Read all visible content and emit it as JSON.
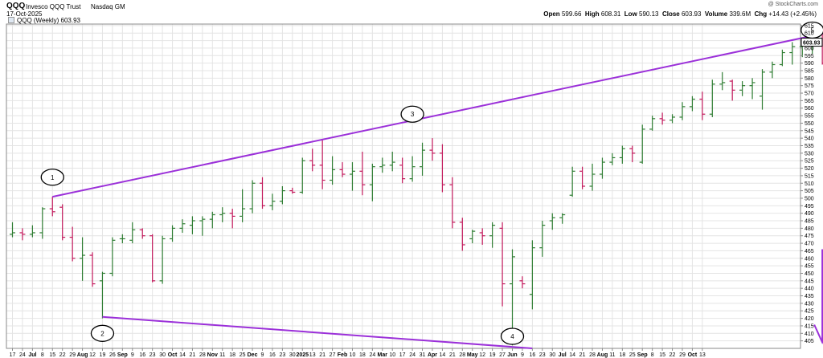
{
  "header": {
    "symbol": "QQQ",
    "name": "Invesco QQQ Trust",
    "exchange": "Nasdaq GM",
    "date": "17-Oct-2025",
    "credit": "@ StockCharts.com",
    "open_label": "Open",
    "open": "599.66",
    "high_label": "High",
    "high": "608.31",
    "low_label": "Low",
    "low": "590.13",
    "close_label": "Close",
    "close": "603.93",
    "volume_label": "Volume",
    "volume": "339.6M",
    "chg_label": "Chg",
    "chg": "+14.43 (+2.45%)"
  },
  "legend": {
    "text": "QQQ (Weekly) 603.93"
  },
  "colors": {
    "up": "#2e7d32",
    "down": "#c2185b",
    "trendline": "#9b30d9",
    "grid": "#e4e4e4",
    "last_price_box": "#000000"
  },
  "chart_data": {
    "type": "ohlc_bar",
    "frequency": "weekly",
    "y_axis": {
      "side": "right",
      "ylim": [
        400,
        616
      ],
      "ticks": [
        405,
        410,
        415,
        420,
        425,
        430,
        435,
        440,
        445,
        450,
        455,
        460,
        465,
        470,
        475,
        480,
        485,
        490,
        495,
        500,
        505,
        510,
        515,
        520,
        525,
        530,
        535,
        540,
        545,
        550,
        555,
        560,
        565,
        570,
        575,
        580,
        585,
        590,
        595,
        600,
        605,
        610,
        615
      ],
      "last_price_label": "603.93"
    },
    "x_tick_labels": [
      "17",
      "24",
      "Jul",
      "8",
      "15",
      "22",
      "29",
      "Aug",
      "12",
      "19",
      "26",
      "Sep",
      "9",
      "16",
      "23",
      "30",
      "Oct",
      "14",
      "21",
      "28",
      "Nov",
      "11",
      "18",
      "25",
      "Dec",
      "9",
      "16",
      "23",
      "30",
      "2025",
      "13",
      "21",
      "27",
      "Feb",
      "10",
      "18",
      "24",
      "Mar",
      "10",
      "17",
      "24",
      "31",
      "Apr",
      "14",
      "21",
      "28",
      "May",
      "12",
      "19",
      "27",
      "Jun",
      "9",
      "16",
      "23",
      "30",
      "Jul",
      "14",
      "21",
      "28",
      "Aug",
      "11",
      "18",
      "25",
      "Sep",
      "8",
      "15",
      "22",
      "29",
      "Oct",
      "13"
    ],
    "x_tick_bold": [
      "Jul",
      "Aug",
      "Sep",
      "Oct",
      "Nov",
      "Dec",
      "2025",
      "Feb",
      "Mar",
      "Apr",
      "May",
      "Jun"
    ],
    "bars": [
      {
        "o": 476.0,
        "h": 484.0,
        "l": 474.0,
        "c": 477.0
      },
      {
        "o": 477.0,
        "h": 480.0,
        "l": 472.0,
        "c": 476.0
      },
      {
        "o": 476.0,
        "h": 482.0,
        "l": 474.0,
        "c": 477.0
      },
      {
        "o": 477.0,
        "h": 494.0,
        "l": 473.0,
        "c": 493.0
      },
      {
        "o": 493.0,
        "h": 501.0,
        "l": 488.0,
        "c": 491.0
      },
      {
        "o": 494.0,
        "h": 496.0,
        "l": 472.0,
        "c": 474.0
      },
      {
        "o": 474.0,
        "h": 481.0,
        "l": 458.0,
        "c": 460.0
      },
      {
        "o": 460.0,
        "h": 474.0,
        "l": 445.0,
        "c": 462.0
      },
      {
        "o": 462.0,
        "h": 464.0,
        "l": 441.0,
        "c": 443.0
      },
      {
        "o": 445.0,
        "h": 451.0,
        "l": 420.0,
        "c": 450.0
      },
      {
        "o": 450.0,
        "h": 474.0,
        "l": 448.0,
        "c": 472.0
      },
      {
        "o": 473.0,
        "h": 476.0,
        "l": 470.0,
        "c": 473.0
      },
      {
        "o": 472.0,
        "h": 484.0,
        "l": 470.0,
        "c": 479.0
      },
      {
        "o": 479.0,
        "h": 480.0,
        "l": 473.0,
        "c": 475.0
      },
      {
        "o": 475.0,
        "h": 476.0,
        "l": 444.0,
        "c": 445.0
      },
      {
        "o": 445.0,
        "h": 475.0,
        "l": 443.0,
        "c": 473.0
      },
      {
        "o": 473.0,
        "h": 482.0,
        "l": 471.0,
        "c": 480.0
      },
      {
        "o": 480.0,
        "h": 486.0,
        "l": 477.0,
        "c": 483.0
      },
      {
        "o": 482.0,
        "h": 488.0,
        "l": 476.0,
        "c": 485.0
      },
      {
        "o": 485.0,
        "h": 488.0,
        "l": 475.0,
        "c": 486.0
      },
      {
        "o": 486.0,
        "h": 491.0,
        "l": 480.0,
        "c": 489.0
      },
      {
        "o": 489.0,
        "h": 494.0,
        "l": 484.0,
        "c": 490.0
      },
      {
        "o": 490.0,
        "h": 493.0,
        "l": 480.0,
        "c": 488.0
      },
      {
        "o": 488.0,
        "h": 506.0,
        "l": 484.0,
        "c": 493.0
      },
      {
        "o": 493.0,
        "h": 512.0,
        "l": 490.0,
        "c": 510.0
      },
      {
        "o": 510.0,
        "h": 514.0,
        "l": 493.0,
        "c": 495.0
      },
      {
        "o": 495.0,
        "h": 503.0,
        "l": 492.0,
        "c": 498.0
      },
      {
        "o": 498.0,
        "h": 508.0,
        "l": 496.0,
        "c": 505.0
      },
      {
        "o": 505.0,
        "h": 507.0,
        "l": 503.0,
        "c": 504.0
      },
      {
        "o": 504.0,
        "h": 527.0,
        "l": 503.0,
        "c": 525.0
      },
      {
        "o": 525.0,
        "h": 533.0,
        "l": 518.0,
        "c": 522.0
      },
      {
        "o": 522.0,
        "h": 539.0,
        "l": 506.0,
        "c": 512.0
      },
      {
        "o": 512.0,
        "h": 528.0,
        "l": 509.0,
        "c": 519.0
      },
      {
        "o": 519.0,
        "h": 524.0,
        "l": 514.0,
        "c": 516.0
      },
      {
        "o": 516.0,
        "h": 524.0,
        "l": 505.0,
        "c": 518.0
      },
      {
        "o": 518.0,
        "h": 531.0,
        "l": 502.0,
        "c": 509.0
      },
      {
        "o": 509.0,
        "h": 523.0,
        "l": 498.0,
        "c": 521.0
      },
      {
        "o": 521.0,
        "h": 527.0,
        "l": 517.0,
        "c": 522.0
      },
      {
        "o": 522.0,
        "h": 531.0,
        "l": 518.0,
        "c": 524.0
      },
      {
        "o": 522.0,
        "h": 527.0,
        "l": 510.0,
        "c": 513.0
      },
      {
        "o": 513.0,
        "h": 528.0,
        "l": 511.0,
        "c": 521.0
      },
      {
        "o": 521.0,
        "h": 537.0,
        "l": 515.0,
        "c": 532.0
      },
      {
        "o": 532.0,
        "h": 540.0,
        "l": 525.0,
        "c": 530.0
      },
      {
        "o": 530.0,
        "h": 536.0,
        "l": 504.0,
        "c": 509.0
      },
      {
        "o": 509.0,
        "h": 514.0,
        "l": 480.0,
        "c": 484.0
      },
      {
        "o": 484.0,
        "h": 487.0,
        "l": 465.0,
        "c": 469.0
      },
      {
        "o": 473.0,
        "h": 479.0,
        "l": 470.0,
        "c": 478.0
      },
      {
        "o": 477.0,
        "h": 480.0,
        "l": 469.0,
        "c": 475.0
      },
      {
        "o": 475.0,
        "h": 484.0,
        "l": 467.0,
        "c": 482.0
      },
      {
        "o": 480.0,
        "h": 484.0,
        "l": 428.0,
        "c": 443.0
      },
      {
        "o": 443.0,
        "h": 466.0,
        "l": 402.0,
        "c": 461.0
      },
      {
        "o": 445.0,
        "h": 448.0,
        "l": 440.0,
        "c": 443.0
      },
      {
        "o": 436.0,
        "h": 472.0,
        "l": 426.0,
        "c": 467.0
      },
      {
        "o": 467.0,
        "h": 485.0,
        "l": 461.0,
        "c": 482.0
      },
      {
        "o": 485.0,
        "h": 490.0,
        "l": 479.0,
        "c": 487.0
      },
      {
        "o": 487.0,
        "h": 490.0,
        "l": 483.0,
        "c": 489.0
      },
      {
        "o": 502.0,
        "h": 521.0,
        "l": 501.0,
        "c": 518.0
      },
      {
        "o": 518.0,
        "h": 521.0,
        "l": 506.0,
        "c": 508.0
      },
      {
        "o": 508.0,
        "h": 523.0,
        "l": 505.0,
        "c": 516.0
      },
      {
        "o": 516.0,
        "h": 527.0,
        "l": 513.0,
        "c": 524.0
      },
      {
        "o": 524.0,
        "h": 530.0,
        "l": 522.0,
        "c": 527.0
      },
      {
        "o": 527.0,
        "h": 535.0,
        "l": 523.0,
        "c": 533.0
      },
      {
        "o": 533.0,
        "h": 535.0,
        "l": 524.0,
        "c": 530.0
      },
      {
        "o": 524.0,
        "h": 549.0,
        "l": 523.0,
        "c": 546.0
      },
      {
        "o": 546.0,
        "h": 555.0,
        "l": 545.0,
        "c": 553.0
      },
      {
        "o": 553.0,
        "h": 557.0,
        "l": 549.0,
        "c": 552.0
      },
      {
        "o": 552.0,
        "h": 556.0,
        "l": 550.0,
        "c": 554.0
      },
      {
        "o": 554.0,
        "h": 564.0,
        "l": 552.0,
        "c": 561.0
      },
      {
        "o": 561.0,
        "h": 568.0,
        "l": 558.0,
        "c": 566.0
      },
      {
        "o": 566.0,
        "h": 571.0,
        "l": 552.0,
        "c": 556.0
      },
      {
        "o": 556.0,
        "h": 579.0,
        "l": 554.0,
        "c": 576.0
      },
      {
        "o": 576.0,
        "h": 584.0,
        "l": 572.0,
        "c": 577.0
      },
      {
        "o": 578.0,
        "h": 579.0,
        "l": 565.0,
        "c": 572.0
      },
      {
        "o": 572.0,
        "h": 578.0,
        "l": 568.0,
        "c": 575.0
      },
      {
        "o": 575.0,
        "h": 580.0,
        "l": 566.0,
        "c": 577.0
      },
      {
        "o": 568.0,
        "h": 586.0,
        "l": 559.0,
        "c": 584.0
      },
      {
        "o": 584.0,
        "h": 591.0,
        "l": 580.0,
        "c": 589.0
      },
      {
        "o": 589.0,
        "h": 599.0,
        "l": 588.0,
        "c": 597.0
      },
      {
        "o": 597.0,
        "h": 604.0,
        "l": 589.0,
        "c": 601.0
      },
      {
        "o": 601.0,
        "h": 605.0,
        "l": 594.0,
        "c": 602.0
      },
      {
        "o": 602.0,
        "h": 609.0,
        "l": 596.0,
        "c": 605.0
      },
      {
        "o": 605.0,
        "h": 610.0,
        "l": 589.0,
        "c": 590.0
      },
      {
        "o": 599.66,
        "h": 608.31,
        "l": 590.13,
        "c": 603.93
      }
    ],
    "trendlines": [
      {
        "name": "upper-trendline",
        "from": {
          "bar": 4,
          "y": 501
        },
        "to": {
          "bar": 82,
          "y": 611
        }
      },
      {
        "name": "lower-trendline",
        "from": {
          "bar": 9,
          "y": 421
        },
        "to": {
          "bar": 52,
          "y": 400
        }
      }
    ],
    "wave_labels": [
      {
        "text": "1",
        "bar": 4,
        "y": 514
      },
      {
        "text": "2",
        "bar": 9,
        "y": 410
      },
      {
        "text": "3",
        "bar": 40,
        "y": 556
      },
      {
        "text": "4",
        "bar": 50,
        "y": 408
      },
      {
        "text": "5",
        "bar": 80,
        "y": 612
      }
    ],
    "down_arrow": {
      "bar": 81,
      "from_y": 466,
      "to_y": 404
    }
  }
}
